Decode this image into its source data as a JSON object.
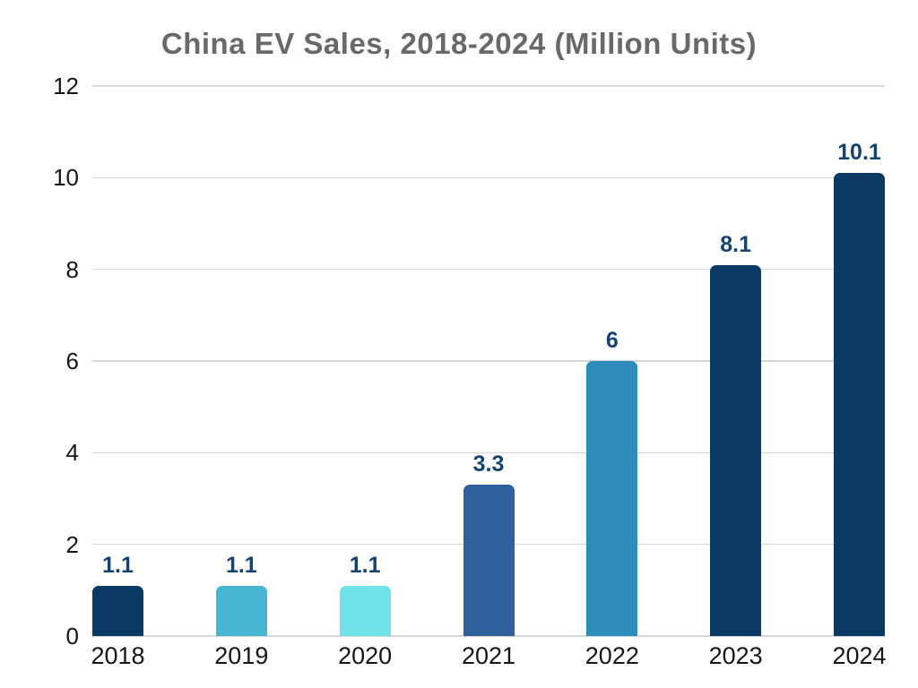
{
  "chart_data": {
    "type": "bar",
    "title": "China EV Sales, 2018-2024 (Million Units)",
    "categories": [
      "2018",
      "2019",
      "2020",
      "2021",
      "2022",
      "2023",
      "2024"
    ],
    "values": [
      1.1,
      1.1,
      1.1,
      3.3,
      6,
      8.1,
      10.1
    ],
    "value_labels": [
      "1.1",
      "1.1",
      "1.1",
      "3.3",
      "6",
      "8.1",
      "10.1"
    ],
    "bar_colors": [
      "#0b3a64",
      "#46b7d3",
      "#70e2e8",
      "#30619c",
      "#2e8cba",
      "#0b3a64",
      "#0b3a64"
    ],
    "xlabel": "",
    "ylabel": "",
    "ylim": [
      0,
      12
    ],
    "yticks": [
      0,
      2,
      4,
      6,
      8,
      10,
      12
    ],
    "grid": true,
    "legend": false,
    "colors": {
      "title_text": "#696969",
      "axis_text": "#161616",
      "value_label_text": "#14436f",
      "gridline": "#d7d7d7",
      "background": "#ffffff"
    }
  }
}
